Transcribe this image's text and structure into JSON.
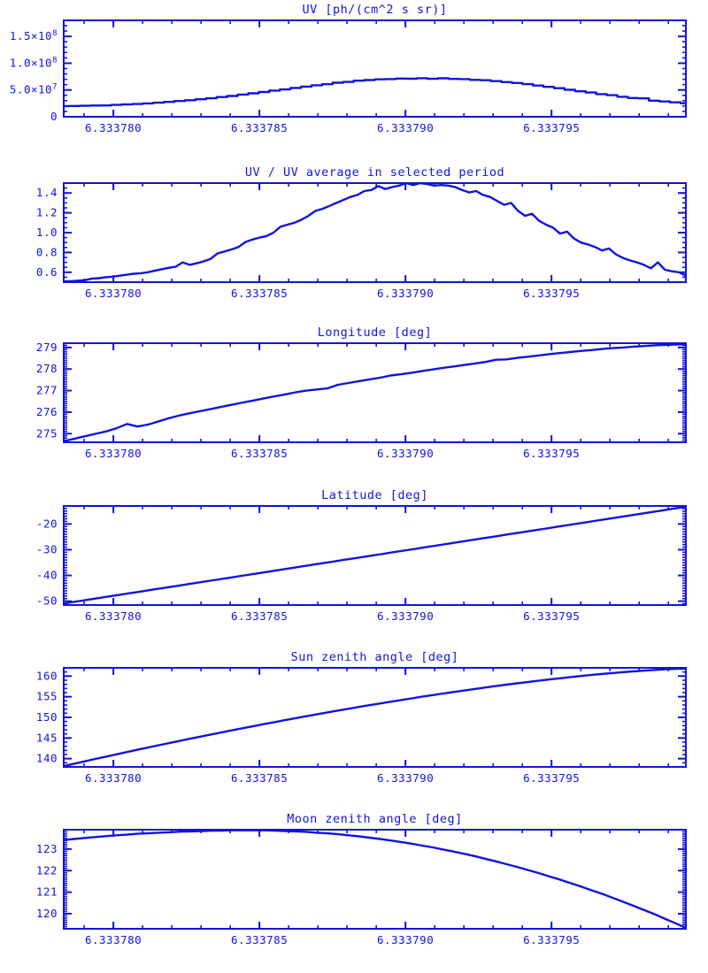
{
  "page": {
    "background": "#ffffff",
    "accent": "#1313dd"
  },
  "chart_data": [
    {
      "type": "line",
      "title": "UV [ph/(cm^2 s sr)]",
      "step": true,
      "x_axis": {
        "min": 6.3337783,
        "max": 6.3337996,
        "minor_step": 1e-06,
        "grid": false,
        "major_ticks": [
          {
            "v": 6.33378,
            "label": "6.333780"
          },
          {
            "v": 6.333785,
            "label": "6.333785"
          },
          {
            "v": 6.33379,
            "label": "6.333790"
          },
          {
            "v": 6.333795,
            "label": "6.333795"
          }
        ]
      },
      "y_axis": {
        "min": 0,
        "max": 180000000.0,
        "minor_step": 10000000.0,
        "major_ticks": [
          {
            "v": 0,
            "label": "0"
          },
          {
            "v": 50000000.0,
            "label": "5.0×10^7"
          },
          {
            "v": 100000000.0,
            "label": "1.0×10^8"
          },
          {
            "v": 150000000.0,
            "label": "1.5×10^8"
          }
        ]
      },
      "series": {
        "x_start": 6.3337783,
        "x_end": 6.3337996,
        "y": [
          20000000.0,
          20200000.0,
          20500000.0,
          21000000.0,
          21200000.0,
          22200000.0,
          23000000.0,
          23800000.0,
          25000000.0,
          26200000.0,
          27800000.0,
          29400000.0,
          30800000.0,
          32700000.0,
          34500000.0,
          36800000.0,
          38800000.0,
          41500000.0,
          43700000.0,
          46200000.0,
          48800000.0,
          51000000.0,
          53800000.0,
          56300000.0,
          58800000.0,
          60800000.0,
          63600000.0,
          65000000.0,
          67300000.0,
          68600000.0,
          69800000.0,
          70300000.0,
          71300000.0,
          71000000.0,
          72000000.0,
          70800000.0,
          71800000.0,
          70600000.0,
          70300000.0,
          68800000.0,
          68200000.0,
          66600000.0,
          64800000.0,
          63000000.0,
          61000000.0,
          58300000.0,
          55800000.0,
          53300000.0,
          50300000.0,
          47600000.0,
          45300000.0,
          42300000.0,
          40300000.0,
          37300000.0,
          35000000.0,
          34300000.0,
          30000000.0,
          28600000.0,
          27000000.0,
          25300000.0
        ]
      }
    },
    {
      "type": "line",
      "title": "UV / UV average in selected period",
      "step": false,
      "x_axis": {
        "min": 6.3337783,
        "max": 6.3337996,
        "minor_step": 1e-06,
        "grid": false,
        "major_ticks": [
          {
            "v": 6.33378,
            "label": "6.333780"
          },
          {
            "v": 6.333785,
            "label": "6.333785"
          },
          {
            "v": 6.33379,
            "label": "6.333790"
          },
          {
            "v": 6.333795,
            "label": "6.333795"
          }
        ]
      },
      "y_axis": {
        "min": 0.5,
        "max": 1.5,
        "minor_step": 0.05,
        "major_ticks": [
          {
            "v": 0.6,
            "label": "0.6"
          },
          {
            "v": 0.8,
            "label": "0.8"
          },
          {
            "v": 1.0,
            "label": "1.0"
          },
          {
            "v": 1.2,
            "label": "1.2"
          },
          {
            "v": 1.4,
            "label": "1.4"
          }
        ]
      },
      "series": {
        "x_start": 6.3337783,
        "x_end": 6.3337996,
        "y": [
          0.51,
          0.51,
          0.515,
          0.52,
          0.535,
          0.54,
          0.55,
          0.555,
          0.565,
          0.575,
          0.585,
          0.59,
          0.6,
          0.615,
          0.63,
          0.645,
          0.655,
          0.7,
          0.675,
          0.69,
          0.71,
          0.735,
          0.79,
          0.81,
          0.83,
          0.855,
          0.905,
          0.93,
          0.95,
          0.965,
          1.0,
          1.06,
          1.08,
          1.1,
          1.13,
          1.17,
          1.22,
          1.24,
          1.27,
          1.3,
          1.33,
          1.36,
          1.38,
          1.42,
          1.43,
          1.47,
          1.44,
          1.46,
          1.475,
          1.5,
          1.48,
          1.5,
          1.49,
          1.475,
          1.48,
          1.475,
          1.46,
          1.43,
          1.405,
          1.42,
          1.38,
          1.36,
          1.32,
          1.28,
          1.3,
          1.22,
          1.17,
          1.19,
          1.12,
          1.08,
          1.05,
          0.99,
          1.01,
          0.94,
          0.9,
          0.88,
          0.855,
          0.82,
          0.84,
          0.78,
          0.745,
          0.72,
          0.7,
          0.675,
          0.64,
          0.7,
          0.625,
          0.61,
          0.6,
          0.565
        ]
      }
    },
    {
      "type": "line",
      "title": "Longitude [deg]",
      "step": false,
      "x_axis": {
        "min": 6.3337783,
        "max": 6.3337996,
        "minor_step": 1e-06,
        "grid": false,
        "major_ticks": [
          {
            "v": 6.33378,
            "label": "6.333780"
          },
          {
            "v": 6.333785,
            "label": "6.333785"
          },
          {
            "v": 6.33379,
            "label": "6.333790"
          },
          {
            "v": 6.333795,
            "label": "6.333795"
          }
        ]
      },
      "y_axis": {
        "min": 274.6,
        "max": 279.2,
        "minor_step": 0.1,
        "major_ticks": [
          {
            "v": 275,
            "label": "275"
          },
          {
            "v": 276,
            "label": "276"
          },
          {
            "v": 277,
            "label": "277"
          },
          {
            "v": 278,
            "label": "278"
          },
          {
            "v": 279,
            "label": "279"
          }
        ]
      },
      "series": {
        "x_start": 6.3337783,
        "x_end": 6.3337996,
        "y": [
          274.65,
          274.76,
          274.88,
          274.99,
          275.1,
          275.25,
          275.45,
          275.33,
          275.42,
          275.57,
          275.72,
          275.85,
          275.95,
          276.05,
          276.15,
          276.25,
          276.35,
          276.45,
          276.54,
          276.64,
          276.73,
          276.82,
          276.92,
          277.0,
          277.05,
          277.1,
          277.27,
          277.35,
          277.44,
          277.52,
          277.6,
          277.7,
          277.76,
          277.83,
          277.91,
          277.98,
          278.06,
          278.12,
          278.19,
          278.26,
          278.33,
          278.43,
          278.45,
          278.52,
          278.57,
          278.63,
          278.69,
          278.74,
          278.79,
          278.84,
          278.88,
          278.93,
          278.97,
          279.0,
          279.04,
          279.07,
          279.1,
          279.12,
          279.14,
          279.15
        ]
      }
    },
    {
      "type": "line",
      "title": "Latitude [deg]",
      "step": false,
      "x_axis": {
        "min": 6.3337783,
        "max": 6.3337996,
        "minor_step": 1e-06,
        "grid": false,
        "major_ticks": [
          {
            "v": 6.33378,
            "label": "6.333780"
          },
          {
            "v": 6.333785,
            "label": "6.333785"
          },
          {
            "v": 6.33379,
            "label": "6.333790"
          },
          {
            "v": 6.333795,
            "label": "6.333795"
          }
        ]
      },
      "y_axis": {
        "min": -51.5,
        "max": -13.0,
        "minor_step": 1,
        "major_ticks": [
          {
            "v": -50,
            "label": "-50"
          },
          {
            "v": -40,
            "label": "-40"
          },
          {
            "v": -30,
            "label": "-30"
          },
          {
            "v": -20,
            "label": "-20"
          }
        ]
      },
      "series": {
        "x_start": 6.3337783,
        "x_end": 6.3337996,
        "y": [
          -50.9,
          -50.13,
          -49.37,
          -48.6,
          -47.83,
          -47.06,
          -46.3,
          -45.53,
          -44.76,
          -44.0,
          -43.23,
          -42.46,
          -41.69,
          -40.93,
          -40.16,
          -39.39,
          -38.63,
          -37.86,
          -37.09,
          -36.32,
          -35.56,
          -34.79,
          -34.02,
          -33.26,
          -32.49,
          -31.72,
          -30.95,
          -30.19,
          -29.42,
          -28.65,
          -27.89,
          -27.12,
          -26.35,
          -25.58,
          -24.82,
          -24.05,
          -23.28,
          -22.52,
          -21.75,
          -20.98,
          -20.21,
          -19.45,
          -18.68,
          -17.91,
          -17.15,
          -16.38,
          -15.61,
          -14.84,
          -14.08,
          -13.3
        ]
      }
    },
    {
      "type": "line",
      "title": "Sun zenith angle [deg]",
      "step": false,
      "x_axis": {
        "min": 6.3337783,
        "max": 6.3337996,
        "minor_step": 1e-06,
        "grid": false,
        "major_ticks": [
          {
            "v": 6.33378,
            "label": "6.333780"
          },
          {
            "v": 6.333785,
            "label": "6.333785"
          },
          {
            "v": 6.33379,
            "label": "6.333790"
          },
          {
            "v": 6.333795,
            "label": "6.333795"
          }
        ]
      },
      "y_axis": {
        "min": 138,
        "max": 162,
        "minor_step": 1,
        "major_ticks": [
          {
            "v": 140,
            "label": "140"
          },
          {
            "v": 145,
            "label": "145"
          },
          {
            "v": 150,
            "label": "150"
          },
          {
            "v": 155,
            "label": "155"
          },
          {
            "v": 160,
            "label": "160"
          }
        ]
      },
      "series": {
        "x_start": 6.3337783,
        "x_end": 6.3337996,
        "y": [
          138.2,
          138.78,
          139.35,
          139.92,
          140.48,
          141.04,
          141.6,
          142.15,
          142.69,
          143.24,
          143.77,
          144.3,
          144.83,
          145.35,
          145.87,
          146.38,
          146.88,
          147.38,
          147.88,
          148.37,
          148.85,
          149.33,
          149.8,
          150.27,
          150.73,
          151.19,
          151.64,
          152.08,
          152.52,
          152.95,
          153.37,
          153.79,
          154.2,
          154.61,
          155.01,
          155.4,
          155.78,
          156.16,
          156.52,
          156.88,
          157.24,
          157.58,
          157.92,
          158.24,
          158.56,
          158.87,
          159.17,
          159.46,
          159.73,
          160.0,
          160.26,
          160.5,
          160.73,
          160.94,
          161.14,
          161.32,
          161.49,
          161.63,
          161.74,
          161.8
        ]
      }
    },
    {
      "type": "line",
      "title": "Moon zenith angle [deg]",
      "step": false,
      "x_axis": {
        "min": 6.3337783,
        "max": 6.3337996,
        "minor_step": 1e-06,
        "grid": false,
        "major_ticks": [
          {
            "v": 6.33378,
            "label": "6.333780"
          },
          {
            "v": 6.333785,
            "label": "6.333785"
          },
          {
            "v": 6.33379,
            "label": "6.333790"
          },
          {
            "v": 6.333795,
            "label": "6.333795"
          }
        ]
      },
      "y_axis": {
        "min": 119.3,
        "max": 123.9,
        "minor_step": 0.1,
        "major_ticks": [
          {
            "v": 120,
            "label": "120"
          },
          {
            "v": 121,
            "label": "121"
          },
          {
            "v": 122,
            "label": "122"
          },
          {
            "v": 123,
            "label": "123"
          }
        ]
      },
      "series": {
        "x_start": 6.3337783,
        "x_end": 6.3337996,
        "y": [
          123.42,
          123.47,
          123.52,
          123.56,
          123.6,
          123.64,
          123.67,
          123.71,
          123.73,
          123.76,
          123.78,
          123.81,
          123.82,
          123.84,
          123.85,
          123.86,
          123.87,
          123.87,
          123.87,
          123.87,
          123.86,
          123.84,
          123.82,
          123.8,
          123.76,
          123.73,
          123.69,
          123.64,
          123.59,
          123.53,
          123.47,
          123.4,
          123.33,
          123.25,
          123.16,
          123.08,
          122.98,
          122.88,
          122.78,
          122.67,
          122.55,
          122.43,
          122.3,
          122.17,
          122.03,
          121.89,
          121.74,
          121.59,
          121.43,
          121.27,
          121.1,
          120.93,
          120.75,
          120.56,
          120.37,
          120.18,
          119.98,
          119.77,
          119.56,
          119.34
        ]
      }
    }
  ]
}
